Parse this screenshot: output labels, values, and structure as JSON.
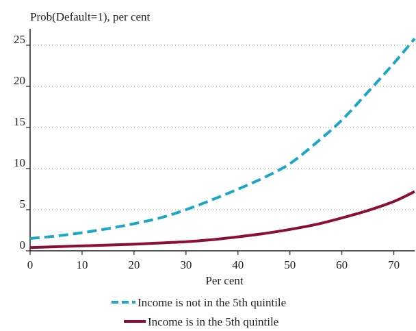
{
  "chart_data": {
    "type": "line",
    "title": "Prob(Default=1), per cent",
    "xlabel": "Per cent",
    "ylabel": "Prob(Default=1), per cent",
    "xlim": [
      0,
      74
    ],
    "ylim": [
      0,
      27
    ],
    "xticks": [
      0,
      10,
      20,
      30,
      40,
      50,
      60,
      70
    ],
    "yticks": [
      0,
      5,
      10,
      15,
      20,
      25
    ],
    "grid": "horizontal dotted",
    "legend_position": "bottom",
    "series": [
      {
        "name": "Income is not in the 5th quintile",
        "style": "dashed",
        "color": "#1aa7c5",
        "x": [
          0,
          5,
          10,
          15,
          20,
          25,
          30,
          35,
          40,
          45,
          50,
          55,
          60,
          65,
          70,
          74
        ],
        "y": [
          1.5,
          1.8,
          2.2,
          2.7,
          3.3,
          4.0,
          5.0,
          6.2,
          7.5,
          8.9,
          10.6,
          13.1,
          15.9,
          19.3,
          22.8,
          25.8
        ]
      },
      {
        "name": "Income is in the 5th quintile",
        "style": "solid",
        "color": "#8b0d3a",
        "x": [
          0,
          5,
          10,
          15,
          20,
          25,
          30,
          35,
          40,
          45,
          50,
          55,
          60,
          65,
          70,
          74
        ],
        "y": [
          0.4,
          0.5,
          0.6,
          0.7,
          0.8,
          0.95,
          1.1,
          1.35,
          1.7,
          2.1,
          2.6,
          3.2,
          4.0,
          4.9,
          6.0,
          7.2
        ]
      }
    ]
  }
}
